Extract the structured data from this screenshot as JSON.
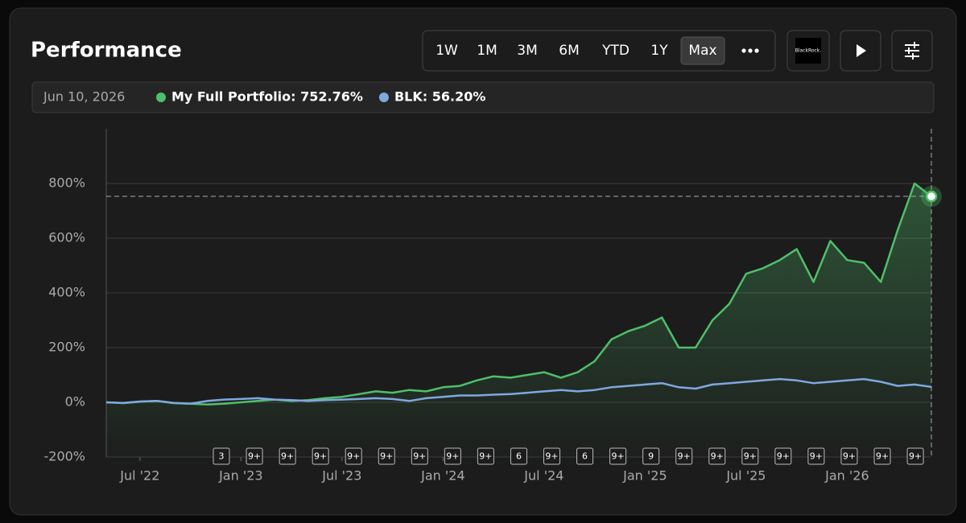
{
  "header": {
    "title": "Performance",
    "range_buttons": [
      "1W",
      "1M",
      "3M",
      "6M",
      "YTD",
      "1Y",
      "Max"
    ],
    "active_index": 6,
    "brand": "BlackRock."
  },
  "chart_data": {
    "type": "line",
    "cursor_date": "Jun 10, 2026",
    "x": [
      "2022-05",
      "2022-06",
      "2022-07",
      "2022-08",
      "2022-09",
      "2022-10",
      "2022-11",
      "2022-12",
      "2023-01",
      "2023-02",
      "2023-03",
      "2023-04",
      "2023-05",
      "2023-06",
      "2023-07",
      "2023-08",
      "2023-09",
      "2023-10",
      "2023-11",
      "2023-12",
      "2024-01",
      "2024-02",
      "2024-03",
      "2024-04",
      "2024-05",
      "2024-06",
      "2024-07",
      "2024-08",
      "2024-09",
      "2024-10",
      "2024-11",
      "2024-12",
      "2025-01",
      "2025-02",
      "2025-03",
      "2025-04",
      "2025-05",
      "2025-06",
      "2025-07",
      "2025-08",
      "2025-09",
      "2025-10",
      "2025-11",
      "2025-12",
      "2026-01",
      "2026-02",
      "2026-03",
      "2026-04",
      "2026-05",
      "2026-06"
    ],
    "series": [
      {
        "name": "My Full Portfolio",
        "color": "#4fbf6b",
        "last_label": "752.76%",
        "values": [
          0,
          -3,
          2,
          5,
          -3,
          -5,
          -8,
          -5,
          0,
          5,
          10,
          5,
          8,
          15,
          20,
          30,
          40,
          35,
          45,
          40,
          55,
          60,
          80,
          95,
          90,
          100,
          110,
          90,
          110,
          150,
          230,
          260,
          280,
          310,
          200,
          200,
          300,
          360,
          470,
          490,
          520,
          560,
          440,
          590,
          520,
          510,
          440,
          630,
          800,
          752.76
        ]
      },
      {
        "name": "BLK",
        "color": "#7fa8e0",
        "last_label": "56.20%",
        "values": [
          0,
          -2,
          3,
          5,
          -2,
          -5,
          5,
          10,
          12,
          15,
          10,
          8,
          5,
          8,
          10,
          12,
          15,
          12,
          5,
          15,
          20,
          25,
          25,
          28,
          30,
          35,
          40,
          45,
          40,
          45,
          55,
          60,
          65,
          70,
          55,
          50,
          65,
          70,
          75,
          80,
          85,
          80,
          70,
          75,
          80,
          85,
          75,
          60,
          65,
          56.2
        ]
      }
    ],
    "xlim": [
      "2022-05",
      "2026-06"
    ],
    "xticks": [
      {
        "value": "2022-07",
        "label": "Jul '22"
      },
      {
        "value": "2023-01",
        "label": "Jan '23"
      },
      {
        "value": "2023-07",
        "label": "Jul '23"
      },
      {
        "value": "2024-01",
        "label": "Jan '24"
      },
      {
        "value": "2024-07",
        "label": "Jul '24"
      },
      {
        "value": "2025-01",
        "label": "Jan '25"
      },
      {
        "value": "2025-07",
        "label": "Jul '25"
      },
      {
        "value": "2026-01",
        "label": "Jan '26"
      }
    ],
    "ylim": [
      -200,
      1000
    ],
    "yticks": [
      {
        "value": -200,
        "label": "-200%"
      },
      {
        "value": 0,
        "label": "0%"
      },
      {
        "value": 200,
        "label": "200%"
      },
      {
        "value": 400,
        "label": "400%"
      },
      {
        "value": 600,
        "label": "600%"
      },
      {
        "value": 800,
        "label": "800%"
      }
    ],
    "grid": true,
    "event_markers": [
      "3",
      "9+",
      "9+",
      "9+",
      "9+",
      "9+",
      "9+",
      "9+",
      "9+",
      "6",
      "9+",
      "6",
      "9+",
      "9",
      "9+",
      "9+",
      "9+",
      "9+",
      "9+",
      "9+",
      "9+",
      "9+"
    ]
  }
}
